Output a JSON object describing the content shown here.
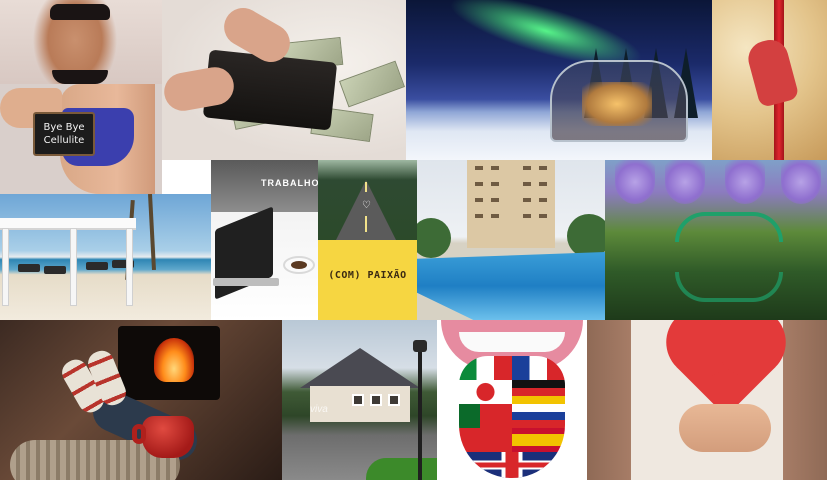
{
  "collage": {
    "tiles": [
      {
        "id": "fitness-body"
      },
      {
        "id": "bye-bye-cellulite",
        "sign_line1": "Bye Bye",
        "sign_line2": "Cellulite"
      },
      {
        "id": "money-wallet"
      },
      {
        "id": "aurora-glass-igloo"
      },
      {
        "id": "aerial-silk-acrobat"
      },
      {
        "id": "beach-pergola"
      },
      {
        "id": "laptop-work",
        "caption": "TRABALHO"
      },
      {
        "id": "forest-road"
      },
      {
        "id": "passion-card",
        "caption": "(COM) PAIXÃO"
      },
      {
        "id": "resort-pool"
      },
      {
        "id": "garden-bridge"
      },
      {
        "id": "fireplace-cozy"
      },
      {
        "id": "mountain-lodge",
        "watermark": "viva"
      },
      {
        "id": "tongue-flags"
      },
      {
        "id": "heart-in-hands"
      }
    ],
    "colors": {
      "passion_card": "#f6d641",
      "aurora_green": "#5aff8c",
      "bridge_green": "#1fa06a",
      "heart_red": "#e33a3a",
      "pool_blue": "#1f7fc4"
    }
  }
}
